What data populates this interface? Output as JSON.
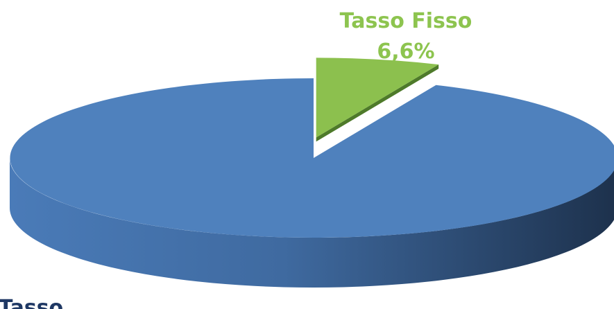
{
  "chart_data": {
    "type": "pie",
    "categories": [
      "Tasso Fisso",
      "Tasso"
    ],
    "values": [
      6.6,
      93.4
    ],
    "value_labels": [
      "6,6%",
      null
    ],
    "colors": [
      "#8cc04e",
      "#4f81bd"
    ],
    "label_colors": [
      "#8dc44f",
      "#1f3864"
    ]
  }
}
